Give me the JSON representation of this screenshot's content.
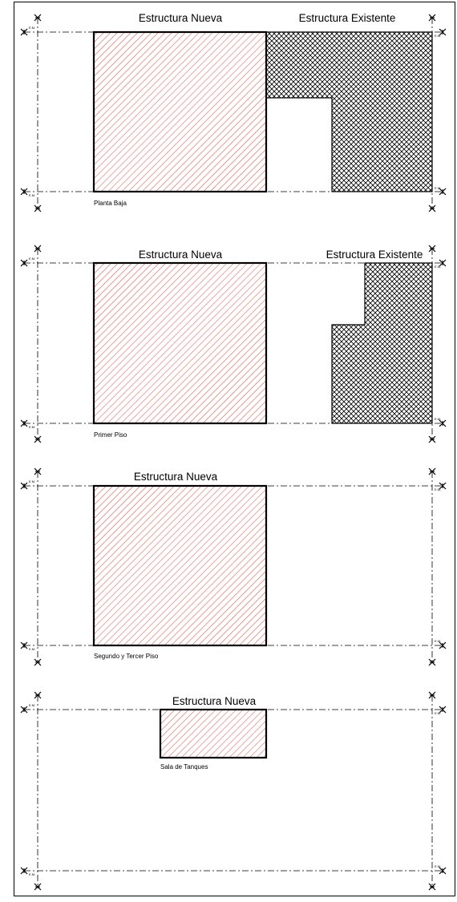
{
  "labels": {
    "new_structure": "Estructura Nueva",
    "existing_structure": "Estructura Existente",
    "axis_marker": "E.M."
  },
  "floors": [
    {
      "caption": "Planta Baja",
      "has_existing": true
    },
    {
      "caption": "Primer Piso",
      "has_existing": true
    },
    {
      "caption": "Segundo y Tercer Piso",
      "has_existing": false
    },
    {
      "caption": "Sala de Tanques",
      "has_existing": false
    }
  ],
  "legend_colors": {
    "new_structure_hatch": "#e0321e",
    "existing_structure_hatch": "#000000",
    "frame": "#000000"
  }
}
